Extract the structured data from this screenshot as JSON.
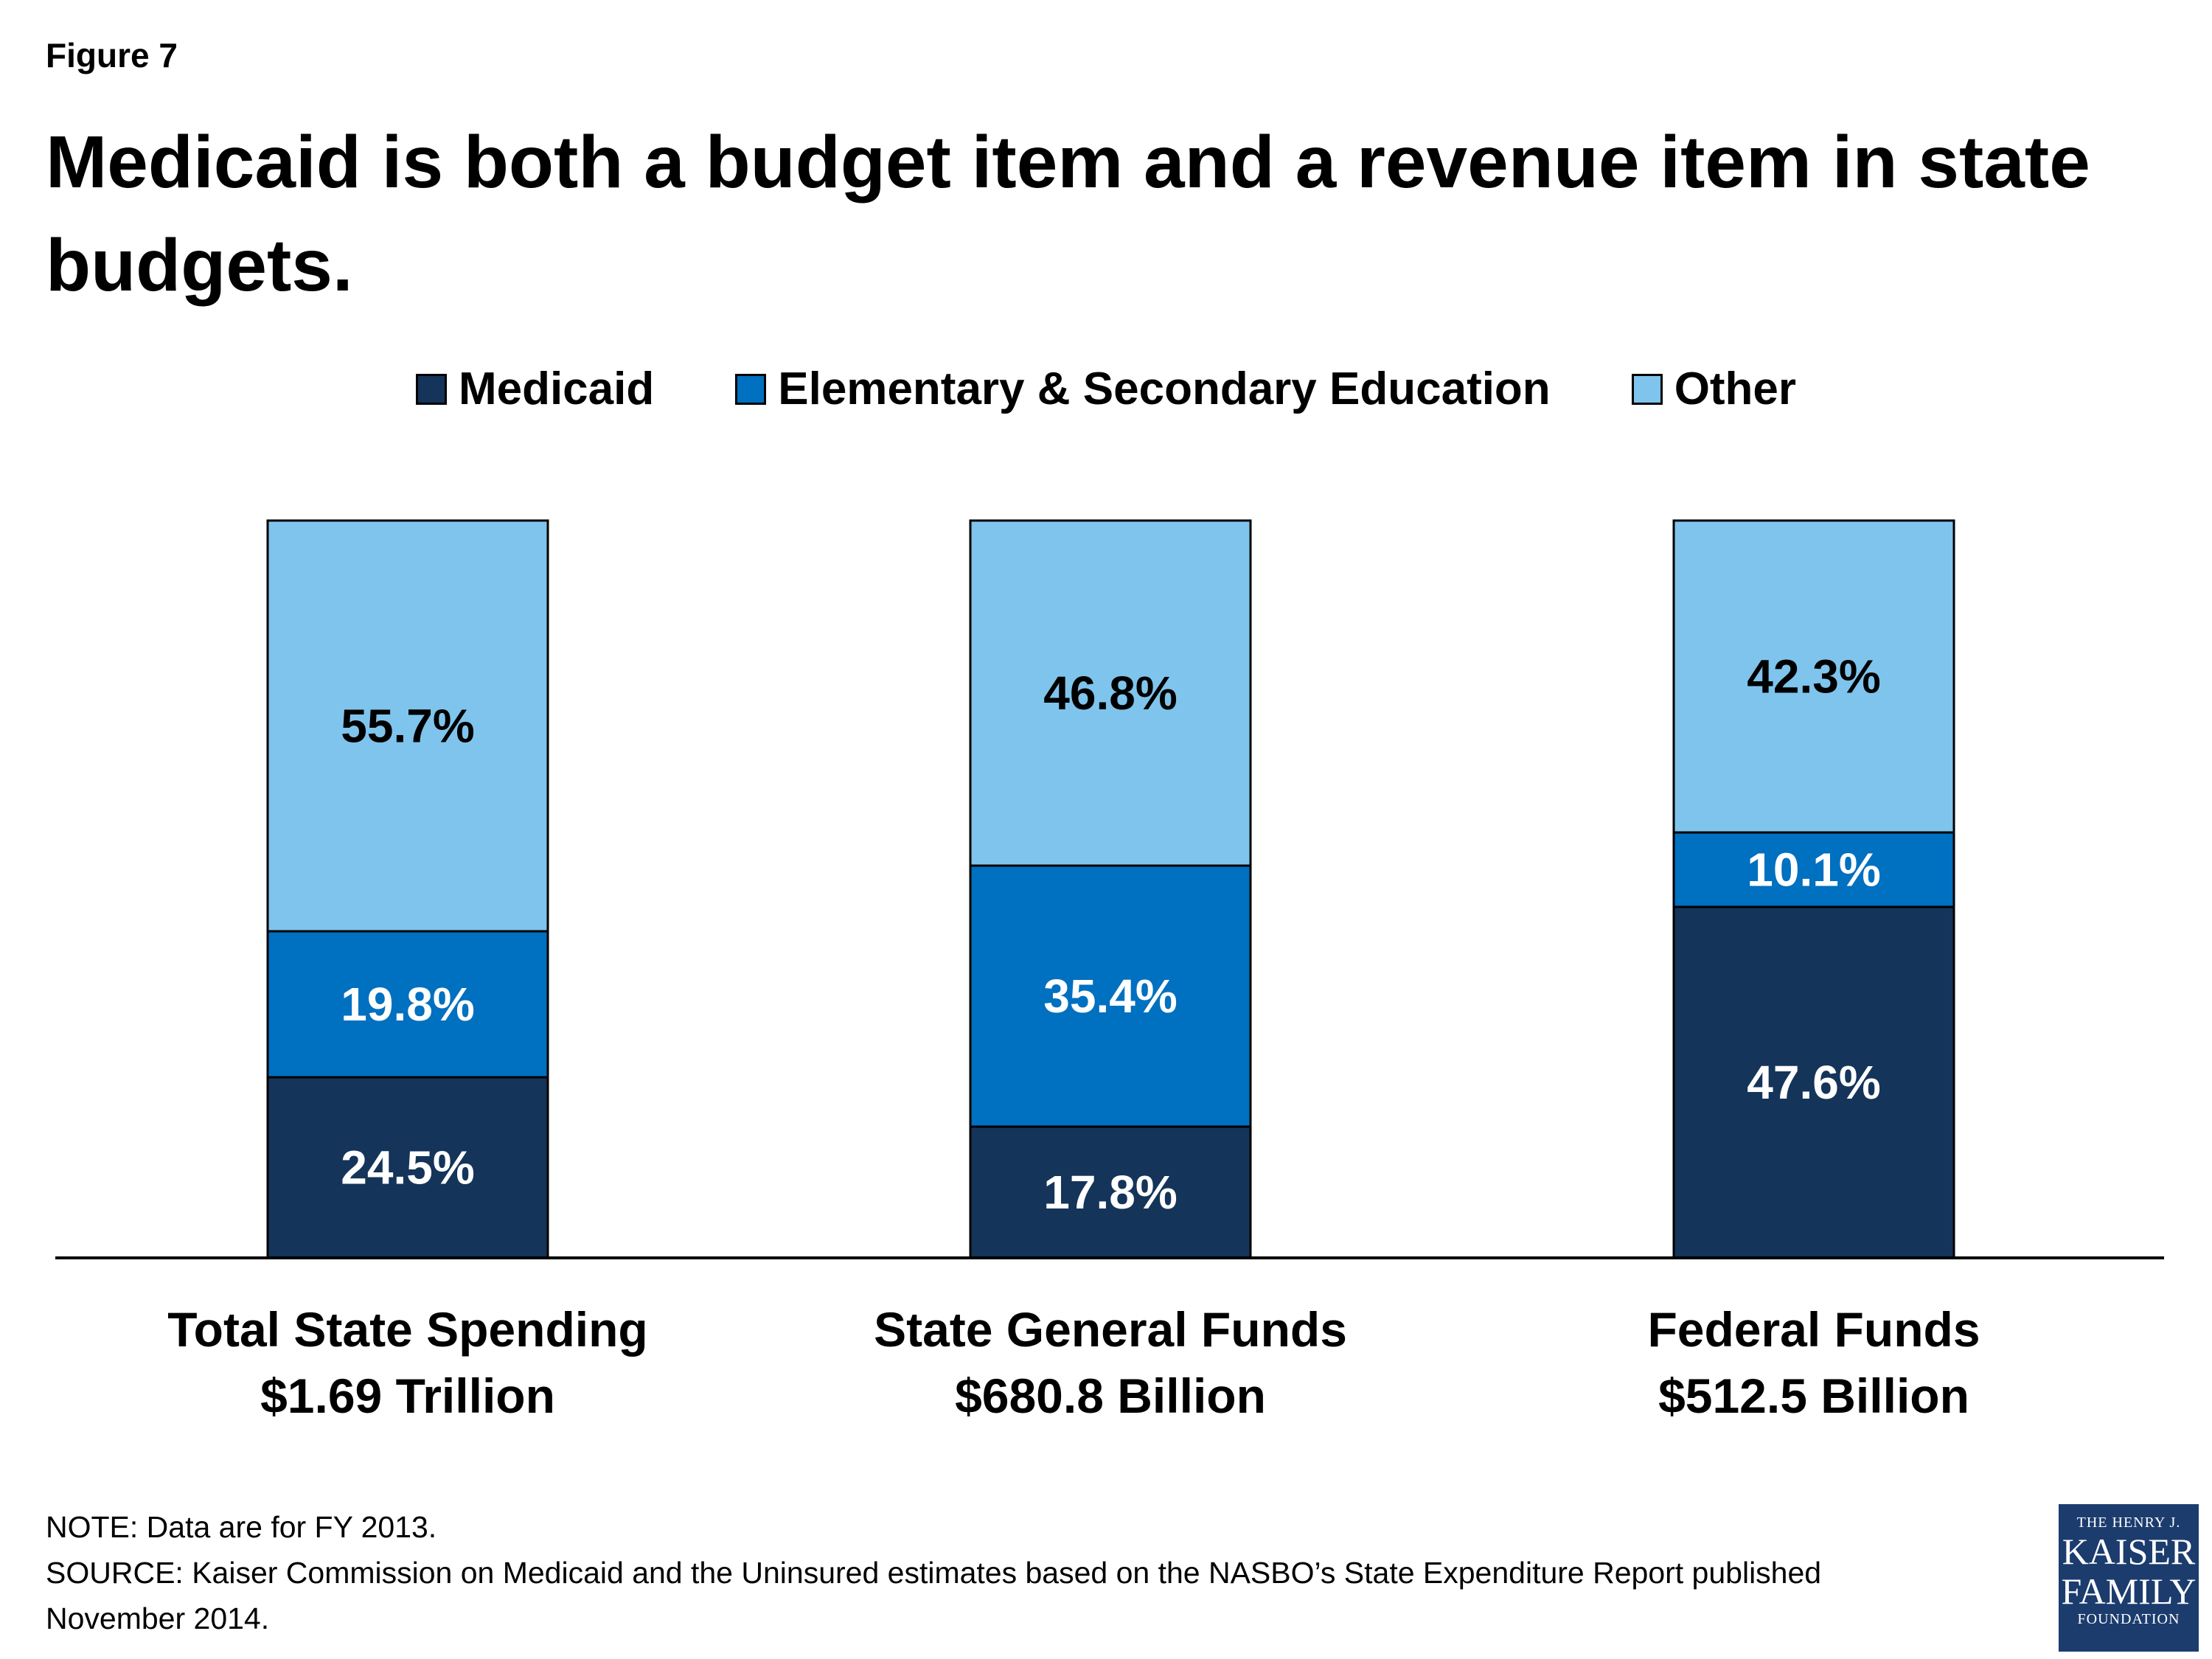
{
  "figure_label": "Figure 7",
  "title_line1": "Medicaid is both a budget item and a revenue item in state",
  "title_line2": "budgets.",
  "legend": [
    {
      "name": "Medicaid",
      "color": "#14345a"
    },
    {
      "name": "Elementary & Secondary Education",
      "color": "#0070c0"
    },
    {
      "name": "Other",
      "color": "#7fc4ec"
    }
  ],
  "chart_data": {
    "type": "bar",
    "stacked": true,
    "legend_position": "top-center",
    "categories": [
      {
        "line1": "Total State Spending",
        "line2": "$1.69 Trillion"
      },
      {
        "line1": "State General Funds",
        "line2": "$680.8 Billion"
      },
      {
        "line1": "Federal Funds",
        "line2": "$512.5 Billion"
      }
    ],
    "series": [
      {
        "name": "Medicaid",
        "color": "#14345a",
        "values": [
          24.5,
          17.8,
          47.6
        ],
        "labels": [
          "24.5%",
          "17.8%",
          "47.6%"
        ],
        "label_color": "#ffffff"
      },
      {
        "name": "Elementary & Secondary Education",
        "color": "#0070c0",
        "values": [
          19.8,
          35.4,
          10.1
        ],
        "labels": [
          "19.8%",
          "35.4%",
          "10.1%"
        ],
        "label_color": "#ffffff"
      },
      {
        "name": "Other",
        "color": "#7fc4ec",
        "values": [
          55.7,
          46.8,
          42.3
        ],
        "labels": [
          "55.7%",
          "46.8%",
          "42.3%"
        ],
        "label_color": "#000000"
      }
    ],
    "ylim": [
      0,
      100
    ],
    "grid": false
  },
  "note": "NOTE: Data are for FY 2013.",
  "source_line1": "SOURCE: Kaiser Commission on Medicaid and the Uninsured estimates based on the NASBO’s State Expenditure Report published",
  "source_line2": "November 2014.",
  "logo": {
    "line1": "THE HENRY J.",
    "line2": "KAISER",
    "line3": "FAMILY",
    "line4": "FOUNDATION"
  }
}
